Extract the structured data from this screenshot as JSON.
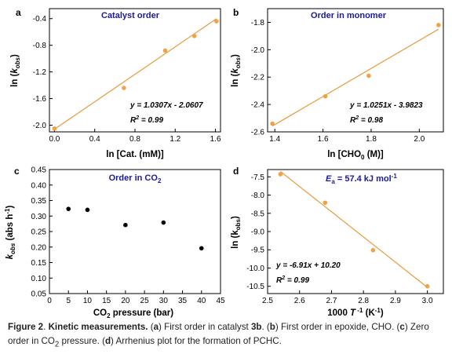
{
  "chart_data": [
    {
      "type": "scatter",
      "panel_letter": "a",
      "title": "Catalyst order",
      "xlabel": "ln [Cat. (mM)]",
      "ylabel_main": "ln (",
      "ylabel_italic": "k",
      "ylabel_sub": "obs",
      "ylabel_close": ")",
      "xlim": [
        -0.05,
        1.65
      ],
      "ylim": [
        -2.1,
        -0.25
      ],
      "xticks": [
        "0.0",
        "0.4",
        "0.8",
        "1.2",
        "1.6"
      ],
      "xtick_values": [
        0.0,
        0.4,
        0.8,
        1.2,
        1.6
      ],
      "yticks": [
        "-2.0",
        "-1.6",
        "-1.2",
        "-0.8",
        "-0.4"
      ],
      "ytick_values": [
        -2.0,
        -1.6,
        -1.2,
        -0.8,
        -0.4
      ],
      "x": [
        0.0,
        0.69,
        1.1,
        1.39,
        1.61
      ],
      "y": [
        -2.05,
        -1.44,
        -0.88,
        -0.66,
        -0.44
      ],
      "fit": {
        "slope": 1.0307,
        "intercept": -2.0607,
        "x_range": [
          0.0,
          1.61
        ]
      },
      "equation": "y = 1.0307x - 2.0607",
      "r2_label": "R",
      "r2_sup": "2",
      "r2_value": " = 0.99"
    },
    {
      "type": "scatter",
      "panel_letter": "b",
      "title": "Order in monomer",
      "xlabel_main": "ln [CHO",
      "xlabel_sub": "0",
      "xlabel_close": " (M)]",
      "ylabel_main": "ln (",
      "ylabel_italic": "k",
      "ylabel_sub": "obs",
      "ylabel_close": ")",
      "xlim": [
        1.37,
        2.1
      ],
      "ylim": [
        -2.6,
        -1.7
      ],
      "xticks": [
        "1.4",
        "1.6",
        "1.8",
        "2.0"
      ],
      "xtick_values": [
        1.4,
        1.6,
        1.8,
        2.0
      ],
      "yticks": [
        "-2.6",
        "-2.4",
        "-2.2",
        "-2.0",
        "-1.8"
      ],
      "ytick_values": [
        -2.6,
        -2.4,
        -2.2,
        -2.0,
        -1.8
      ],
      "x": [
        1.39,
        1.61,
        1.79,
        2.08
      ],
      "y": [
        -2.54,
        -2.34,
        -2.19,
        -1.82
      ],
      "fit": {
        "slope": 1.0251,
        "intercept": -3.9823,
        "x_range": [
          1.39,
          2.08
        ]
      },
      "equation": "y = 1.0251x - 3.9823",
      "r2_label": "R",
      "r2_sup": "2",
      "r2_value": " = 0.98"
    },
    {
      "type": "scatter",
      "panel_letter": "c",
      "title_main": "Order in CO",
      "title_sub": "2",
      "xlabel_main": "CO",
      "xlabel_sub": "2",
      "xlabel_close": " pressure (bar)",
      "ylabel_italic": "k",
      "ylabel_sub": "obs",
      "ylabel_main": " (abs h",
      "ylabel_sup": "-1",
      "ylabel_close": ")",
      "xlim": [
        0,
        45
      ],
      "ylim": [
        0.05,
        0.45
      ],
      "xticks": [
        "0",
        "5",
        "10",
        "15",
        "20",
        "25",
        "30",
        "35",
        "40",
        "45"
      ],
      "xtick_values": [
        0,
        5,
        10,
        15,
        20,
        25,
        30,
        35,
        40,
        45
      ],
      "yticks": [
        "0.05",
        "0.10",
        "0.15",
        "0.20",
        "0.25",
        "0.30",
        "0.35",
        "0.40",
        "0.45"
      ],
      "ytick_values": [
        0.05,
        0.1,
        0.15,
        0.2,
        0.25,
        0.3,
        0.35,
        0.4,
        0.45
      ],
      "x": [
        5,
        10,
        20,
        30,
        40
      ],
      "y": [
        0.323,
        0.32,
        0.271,
        0.279,
        0.196
      ]
    },
    {
      "type": "scatter",
      "panel_letter": "d",
      "title_italic": "E",
      "title_sub": "a",
      "title_main": " = 57.4 kJ mol",
      "title_sup": "-1",
      "xlabel_main": "1000 ",
      "xlabel_italic": "T",
      "xlabel_sup": " -1",
      "xlabel_unit": " (K",
      "xlabel_unit_sup": "-1",
      "xlabel_close": ")",
      "ylabel_main": "ln (k",
      "ylabel_sub": "obs",
      "ylabel_close": ")",
      "xlim": [
        2.5,
        3.05
      ],
      "ylim": [
        -10.7,
        -7.3
      ],
      "xticks": [
        "2.5",
        "2.6",
        "2.7",
        "2.8",
        "2.9",
        "3.0"
      ],
      "xtick_values": [
        2.5,
        2.6,
        2.7,
        2.8,
        2.9,
        3.0
      ],
      "yticks": [
        "-10.5",
        "-10.0",
        "-9.5",
        "-9.0",
        "-8.5",
        "-8.0",
        "-7.5"
      ],
      "ytick_values": [
        -10.5,
        -10.0,
        -9.5,
        -9.0,
        -8.5,
        -8.0,
        -7.5
      ],
      "x": [
        2.54,
        2.68,
        2.83,
        3.0
      ],
      "y": [
        -7.43,
        -8.21,
        -9.51,
        -10.5
      ],
      "fit": {
        "slope": -6.91,
        "intercept": 10.2,
        "x_range": [
          2.54,
          3.0
        ]
      },
      "equation": "y = -6.91x + 10.20",
      "r2_label": "R",
      "r2_sup": "2",
      "r2_value": " = 0.99"
    }
  ],
  "caption": {
    "figure_label": "Figure 2",
    "sep": ". ",
    "title": "Kinetic measurements.",
    "a_open": " (",
    "a_letter": "a",
    "a_text": ") First order in catalyst ",
    "a_cat": "3b",
    "b_open": ". (",
    "b_letter": "b",
    "b_text": ") First order in epoxide, CHO. (",
    "c_letter": "c",
    "c_text": ") Zero order in CO",
    "c_sub": "2",
    "c_text2": " pressure. (",
    "d_letter": "d",
    "d_text": ") Arrhenius plot for the formation of PCHC."
  },
  "colors": {
    "fit_line": "#e89a3c",
    "marker_orange": "#f2a144",
    "marker_black": "#000000",
    "title_blue": "#1a1a9a"
  }
}
